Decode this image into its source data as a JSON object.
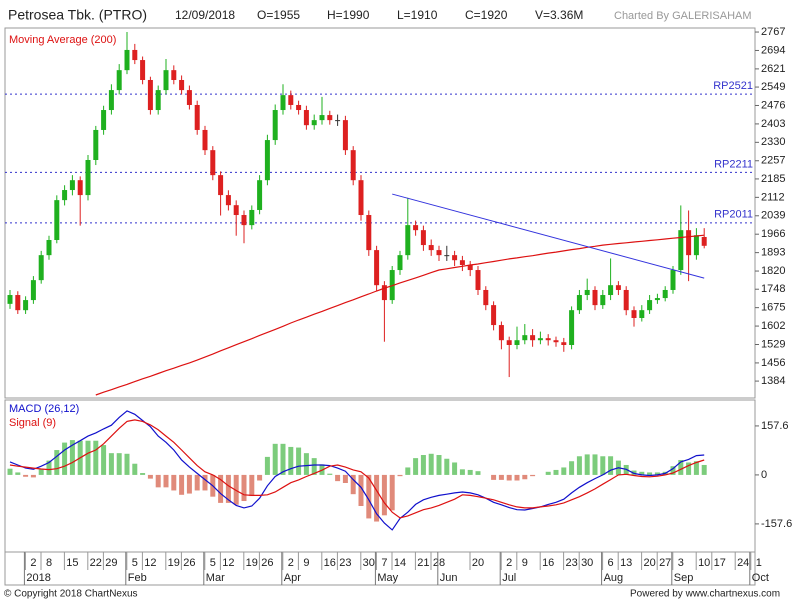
{
  "header": {
    "title": "Petrosea Tbk. (PTRO)",
    "date": "12/09/2018",
    "open": "O=1955",
    "high": "H=1990",
    "low": "L=1910",
    "close": "C=1920",
    "volume": "V=3.36M",
    "credit": "Charted By GALERISAHAM"
  },
  "footer": {
    "copyright": "© Copyright 2018 ChartNexus",
    "powered": "Powered by www.chartnexus.com"
  },
  "chart_data": [
    {
      "type": "candlestick",
      "up_color": "#1fb01f",
      "down_color": "#dd2020",
      "doji_color": "#333333",
      "ylim": [
        1317,
        2783
      ],
      "yticks": [
        2767,
        2694,
        2621,
        2549,
        2476,
        2403,
        2330,
        2257,
        2185,
        2112,
        2039,
        1966,
        1893,
        1820,
        1748,
        1675,
        1602,
        1529,
        1456,
        1384
      ],
      "categories": [
        null,
        null,
        null,
        "2",
        null,
        "8",
        null,
        null,
        "15",
        null,
        null,
        "22",
        null,
        "29",
        null,
        null,
        "5",
        null,
        "12",
        null,
        null,
        "19",
        null,
        "26",
        null,
        null,
        "5",
        null,
        "12",
        null,
        null,
        "19",
        null,
        "26",
        null,
        null,
        "2",
        null,
        "9",
        null,
        null,
        "16",
        null,
        "23",
        null,
        null,
        "30",
        null,
        "7",
        null,
        "14",
        null,
        null,
        "21",
        null,
        "28",
        null,
        null,
        null,
        null,
        "20",
        null,
        null,
        null,
        "2",
        null,
        "9",
        null,
        null,
        "16",
        null,
        null,
        "23",
        null,
        "30",
        null,
        null,
        "6",
        null,
        "13",
        null,
        null,
        "20",
        null,
        "27",
        null,
        "3",
        null,
        null,
        "10",
        null,
        "17",
        null,
        null,
        "24",
        null,
        "1"
      ],
      "months": [
        null,
        null,
        null,
        "2018",
        null,
        null,
        null,
        null,
        null,
        null,
        null,
        null,
        null,
        null,
        null,
        null,
        "Feb",
        null,
        null,
        null,
        null,
        null,
        null,
        null,
        null,
        null,
        "Mar",
        null,
        null,
        null,
        null,
        null,
        null,
        null,
        null,
        null,
        "Apr",
        null,
        null,
        null,
        null,
        null,
        null,
        null,
        null,
        null,
        null,
        null,
        "May",
        null,
        null,
        null,
        null,
        null,
        null,
        null,
        "Jun",
        null,
        null,
        null,
        null,
        null,
        null,
        null,
        "Jul",
        null,
        null,
        null,
        null,
        null,
        null,
        null,
        null,
        null,
        null,
        null,
        null,
        "Aug",
        null,
        null,
        null,
        null,
        null,
        null,
        null,
        null,
        "Sep",
        null,
        null,
        null,
        null,
        null,
        null,
        null,
        null,
        null,
        "Oct"
      ],
      "ohlc": [
        [
          1690,
          1745,
          1670,
          1725
        ],
        [
          1725,
          1740,
          1650,
          1665
        ],
        [
          1665,
          1720,
          1650,
          1705
        ],
        [
          1705,
          1800,
          1690,
          1784
        ],
        [
          1784,
          1900,
          1770,
          1883
        ],
        [
          1883,
          1960,
          1865,
          1943
        ],
        [
          1943,
          2120,
          1930,
          2101
        ],
        [
          2101,
          2160,
          2080,
          2141
        ],
        [
          2141,
          2200,
          2120,
          2180
        ],
        [
          2180,
          2195,
          2000,
          2121
        ],
        [
          2121,
          2280,
          2100,
          2260
        ],
        [
          2260,
          2395,
          2240,
          2379
        ],
        [
          2379,
          2475,
          2360,
          2458
        ],
        [
          2458,
          2560,
          2440,
          2537
        ],
        [
          2537,
          2640,
          2520,
          2616
        ],
        [
          2616,
          2767,
          2600,
          2696
        ],
        [
          2696,
          2720,
          2640,
          2656
        ],
        [
          2656,
          2670,
          2560,
          2577
        ],
        [
          2577,
          2590,
          2440,
          2458
        ],
        [
          2458,
          2555,
          2440,
          2537
        ],
        [
          2537,
          2660,
          2520,
          2616
        ],
        [
          2616,
          2635,
          2560,
          2577
        ],
        [
          2577,
          2595,
          2520,
          2537
        ],
        [
          2537,
          2555,
          2460,
          2478
        ],
        [
          2478,
          2495,
          2360,
          2379
        ],
        [
          2379,
          2395,
          2280,
          2299
        ],
        [
          2299,
          2315,
          2180,
          2200
        ],
        [
          2200,
          2215,
          2040,
          2121
        ],
        [
          2121,
          2140,
          2060,
          2081
        ],
        [
          2081,
          2100,
          1960,
          2042
        ],
        [
          2042,
          2060,
          1930,
          2002
        ],
        [
          2002,
          2080,
          1985,
          2062
        ],
        [
          2062,
          2200,
          2045,
          2180
        ],
        [
          2180,
          2360,
          2160,
          2339
        ],
        [
          2339,
          2480,
          2320,
          2458
        ],
        [
          2458,
          2560,
          2440,
          2517
        ],
        [
          2517,
          2535,
          2460,
          2478
        ],
        [
          2478,
          2495,
          2440,
          2458
        ],
        [
          2458,
          2475,
          2380,
          2398
        ],
        [
          2398,
          2440,
          2380,
          2418
        ],
        [
          2418,
          2510,
          2400,
          2438
        ],
        [
          2438,
          2455,
          2400,
          2418
        ],
        [
          2418,
          2440,
          2395,
          2418
        ],
        [
          2418,
          2435,
          2280,
          2299
        ],
        [
          2299,
          2315,
          2160,
          2180
        ],
        [
          2180,
          2200,
          2020,
          2042
        ],
        [
          2042,
          2060,
          1880,
          1903
        ],
        [
          1903,
          1920,
          1740,
          1764
        ],
        [
          1764,
          1780,
          1540,
          1705
        ],
        [
          1705,
          1840,
          1690,
          1824
        ],
        [
          1824,
          1900,
          1805,
          1883
        ],
        [
          1883,
          2110,
          1865,
          2002
        ],
        [
          2002,
          2020,
          1960,
          1982
        ],
        [
          1982,
          2000,
          1900,
          1923
        ],
        [
          1923,
          1945,
          1880,
          1903
        ],
        [
          1903,
          1920,
          1860,
          1883
        ],
        [
          1883,
          1920,
          1860,
          1883
        ],
        [
          1883,
          1900,
          1840,
          1863
        ],
        [
          1863,
          1880,
          1820,
          1844
        ],
        [
          1844,
          1860,
          1800,
          1824
        ],
        [
          1824,
          1840,
          1725,
          1745
        ],
        [
          1745,
          1760,
          1665,
          1685
        ],
        [
          1685,
          1700,
          1585,
          1606
        ],
        [
          1606,
          1620,
          1510,
          1546
        ],
        [
          1546,
          1560,
          1400,
          1527
        ],
        [
          1527,
          1600,
          1510,
          1546
        ],
        [
          1546,
          1610,
          1530,
          1566
        ],
        [
          1566,
          1590,
          1520,
          1546
        ],
        [
          1546,
          1580,
          1530,
          1554
        ],
        [
          1554,
          1570,
          1525,
          1546
        ],
        [
          1546,
          1560,
          1520,
          1538
        ],
        [
          1538,
          1555,
          1500,
          1527
        ],
        [
          1527,
          1680,
          1510,
          1665
        ],
        [
          1665,
          1745,
          1650,
          1725
        ],
        [
          1725,
          1790,
          1705,
          1745
        ],
        [
          1745,
          1760,
          1665,
          1685
        ],
        [
          1685,
          1745,
          1670,
          1725
        ],
        [
          1725,
          1870,
          1705,
          1764
        ],
        [
          1764,
          1780,
          1725,
          1745
        ],
        [
          1745,
          1760,
          1645,
          1665
        ],
        [
          1665,
          1680,
          1600,
          1634
        ],
        [
          1634,
          1685,
          1620,
          1665
        ],
        [
          1665,
          1725,
          1650,
          1705
        ],
        [
          1705,
          1730,
          1690,
          1713
        ],
        [
          1713,
          1760,
          1700,
          1745
        ],
        [
          1745,
          1840,
          1730,
          1824
        ],
        [
          1824,
          2080,
          1805,
          1982
        ],
        [
          1982,
          2060,
          1780,
          1883
        ],
        [
          1883,
          1990,
          1865,
          1962
        ],
        [
          1955,
          1990,
          1910,
          1920
        ],
        null,
        null,
        null,
        null,
        null,
        null,
        null
      ],
      "ma": {
        "name": "Moving Average (200)",
        "color": "#dd1111",
        "values": [
          null,
          null,
          null,
          null,
          null,
          null,
          null,
          null,
          null,
          null,
          null,
          1329,
          1340,
          1350,
          1361,
          1371,
          1382,
          1393,
          1403,
          1414,
          1425,
          1435,
          1446,
          1456,
          1467,
          1479,
          1491,
          1504,
          1516,
          1528,
          1540,
          1552,
          1565,
          1577,
          1589,
          1601,
          1614,
          1626,
          1637,
          1649,
          1660,
          1672,
          1683,
          1695,
          1706,
          1718,
          1729,
          1741,
          1752,
          1762,
          1773,
          1783,
          1793,
          1803,
          1814,
          1824,
          1829,
          1834,
          1839,
          1844,
          1848,
          1853,
          1858,
          1863,
          1868,
          1872,
          1877,
          1881,
          1886,
          1891,
          1895,
          1900,
          1905,
          1909,
          1914,
          1918,
          1923,
          1926,
          1929,
          1932,
          1935,
          1938,
          1941,
          1944,
          1947,
          1950,
          1953,
          1956,
          1959,
          1962,
          null,
          null,
          null,
          null,
          null,
          null,
          null
        ]
      },
      "reference_color": "#3333cc",
      "reference_lines": [
        {
          "value": 2521,
          "label": "RP2521"
        },
        {
          "value": 2211,
          "label": "RP2211"
        },
        {
          "value": 2011,
          "label": "RP2011"
        }
      ],
      "trendline": {
        "color": "#3333dd",
        "start": {
          "index": 49,
          "value": 2125
        },
        "end": {
          "index": 89,
          "value": 1792
        }
      }
    },
    {
      "type": "macd",
      "ylim": [
        -248,
        241
      ],
      "yticks": [
        157.6,
        0,
        -157.6
      ],
      "hist_up_color": "#7ccc7c",
      "hist_down_color": "#e08a7a",
      "series": [
        {
          "name": "MACD (26,12)",
          "color": "#1010cc",
          "values": [
            42,
            32,
            22,
            18,
            28,
            40,
            60,
            80,
            96,
            110,
            125,
            135,
            148,
            160,
            185,
            206,
            195,
            175,
            155,
            125,
            105,
            80,
            48,
            25,
            5,
            -15,
            -35,
            -60,
            -80,
            -98,
            -106,
            -100,
            -75,
            -35,
            -5,
            10,
            20,
            28,
            30,
            32,
            32,
            30,
            22,
            12,
            -15,
            -40,
            -80,
            -125,
            -155,
            -177,
            -140,
            -120,
            -95,
            -80,
            -72,
            -66,
            -62,
            -58,
            -55,
            -58,
            -64,
            -75,
            -88,
            -96,
            -105,
            -112,
            -113,
            -108,
            -103,
            -95,
            -88,
            -78,
            -58,
            -40,
            -25,
            -12,
            0,
            15,
            23,
            18,
            5,
            0,
            -2,
            0,
            5,
            20,
            42,
            50,
            62,
            64,
            null,
            null,
            null,
            null,
            null,
            null,
            null
          ]
        },
        {
          "name": "Signal (9)",
          "color": "#dd1111",
          "values": [
            32,
            28,
            25,
            22,
            19,
            17,
            20,
            28,
            40,
            55,
            70,
            80,
            100,
            125,
            150,
            172,
            177,
            172,
            161,
            145,
            125,
            105,
            80,
            55,
            30,
            10,
            0,
            -15,
            -35,
            -50,
            -64,
            -66,
            -66,
            -64,
            -55,
            -40,
            -25,
            -16,
            -5,
            5,
            15,
            28,
            32,
            25,
            16,
            10,
            -10,
            -50,
            -90,
            -120,
            -138,
            -132,
            -122,
            -112,
            -106,
            -98,
            -88,
            -78,
            -64,
            -66,
            -70,
            -75,
            -80,
            -88,
            -96,
            -103,
            -106,
            -106,
            -103,
            -100,
            -96,
            -90,
            -80,
            -70,
            -58,
            -45,
            -30,
            -15,
            0,
            2,
            -2,
            -5,
            -6,
            -4,
            0,
            6,
            18,
            30,
            40,
            48,
            null,
            null,
            null,
            null,
            null,
            null,
            null
          ]
        }
      ],
      "histogram": [
        20,
        8,
        -6,
        -8,
        18,
        46,
        80,
        104,
        112,
        110,
        110,
        110,
        96,
        70,
        70,
        68,
        36,
        6,
        -12,
        -40,
        -40,
        -50,
        -64,
        -60,
        -50,
        -50,
        -70,
        -90,
        -90,
        -96,
        -84,
        -68,
        -18,
        58,
        100,
        100,
        90,
        88,
        70,
        54,
        34,
        4,
        -20,
        -26,
        -62,
        -100,
        -140,
        -150,
        -130,
        -114,
        -4,
        24,
        54,
        64,
        68,
        64,
        52,
        40,
        18,
        16,
        12,
        0,
        -16,
        -16,
        -18,
        -18,
        -14,
        -4,
        0,
        10,
        16,
        24,
        44,
        60,
        66,
        66,
        60,
        60,
        46,
        32,
        14,
        10,
        8,
        8,
        10,
        28,
        48,
        40,
        44,
        32,
        null,
        null,
        null,
        null,
        null,
        null,
        null
      ]
    }
  ]
}
